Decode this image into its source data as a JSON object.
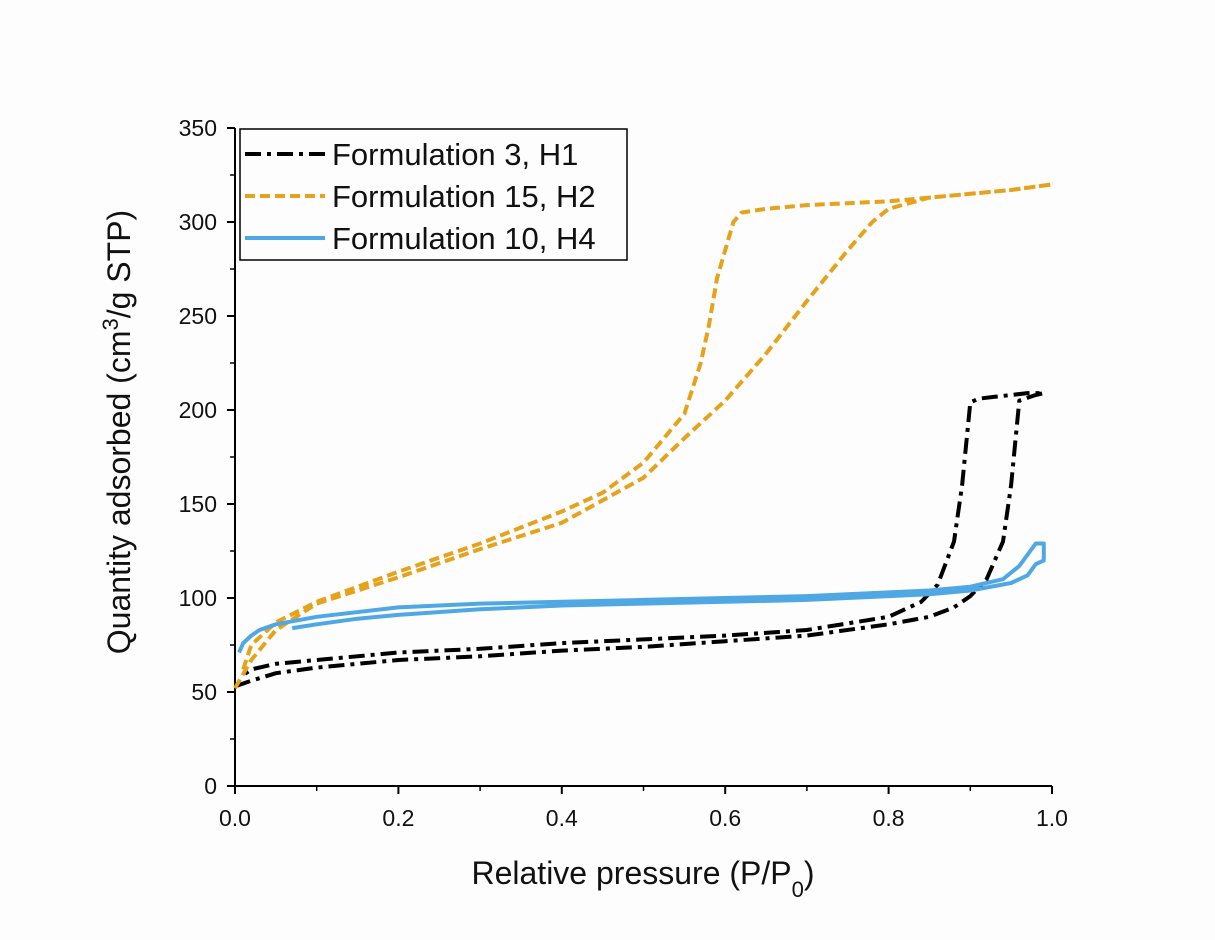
{
  "chart_data": {
    "type": "line",
    "title": "",
    "xlabel": "Relative pressure (P/P0)",
    "xlabel_parts": {
      "main": "Relative pressure (P/P",
      "sub": "0",
      "end": ")"
    },
    "ylabel": "Quantity adsorbed (cm3/g STP)",
    "ylabel_parts": {
      "main": "Quantity adsorbed (cm",
      "sup": "3",
      "end": "/g STP)"
    },
    "xlim": [
      0.0,
      1.0
    ],
    "ylim": [
      0,
      350
    ],
    "xticks": [
      "0.0",
      "0.2",
      "0.4",
      "0.6",
      "0.8",
      "1.0"
    ],
    "yticks": [
      "0",
      "50",
      "100",
      "150",
      "200",
      "250",
      "300",
      "350"
    ],
    "grid": false,
    "legend_position": "top-left",
    "series": [
      {
        "name": "Formulation 3, H1",
        "color": "#000000",
        "style": "dashdot",
        "x": [
          0.0,
          0.02,
          0.05,
          0.1,
          0.2,
          0.3,
          0.4,
          0.5,
          0.6,
          0.7,
          0.8,
          0.85,
          0.88,
          0.9,
          0.92,
          0.94,
          0.95,
          0.96,
          0.98,
          0.99,
          0.97,
          0.95,
          0.93,
          0.91,
          0.9,
          0.89,
          0.88,
          0.86,
          0.84,
          0.8,
          0.7,
          0.6,
          0.5,
          0.4,
          0.3,
          0.2,
          0.1,
          0.05,
          0.02,
          0.01
        ],
        "y": [
          53,
          56,
          60,
          63,
          67,
          69,
          72,
          74,
          77,
          80,
          86,
          90,
          95,
          101,
          110,
          130,
          160,
          205,
          208,
          209,
          209,
          208,
          207,
          206,
          204,
          160,
          130,
          107,
          98,
          90,
          83,
          80,
          78,
          76,
          73,
          71,
          67,
          65,
          62,
          59
        ]
      },
      {
        "name": "Formulation 15, H2",
        "color": "#e5a21b",
        "style": "dashed",
        "x": [
          0.0,
          0.02,
          0.05,
          0.1,
          0.2,
          0.3,
          0.4,
          0.5,
          0.55,
          0.6,
          0.65,
          0.7,
          0.75,
          0.78,
          0.8,
          0.85,
          0.9,
          0.95,
          1.0,
          0.95,
          0.9,
          0.85,
          0.8,
          0.75,
          0.7,
          0.65,
          0.62,
          0.61,
          0.6,
          0.59,
          0.58,
          0.57,
          0.55,
          0.5,
          0.45,
          0.4,
          0.3,
          0.2,
          0.1,
          0.05,
          0.02,
          0.01
        ],
        "y": [
          52,
          67,
          83,
          97,
          111,
          126,
          140,
          164,
          185,
          205,
          230,
          258,
          285,
          300,
          307,
          313,
          315,
          317,
          320,
          317,
          315,
          313,
          311,
          310,
          309,
          307,
          305,
          300,
          285,
          270,
          245,
          225,
          198,
          172,
          156,
          146,
          129,
          114,
          98,
          87,
          75,
          62
        ]
      },
      {
        "name": "Formulation 10, H4",
        "color": "#4fa8e3",
        "style": "solid",
        "x": [
          0.07,
          0.1,
          0.15,
          0.2,
          0.3,
          0.4,
          0.5,
          0.6,
          0.7,
          0.8,
          0.85,
          0.9,
          0.95,
          0.97,
          0.98,
          0.99,
          0.99,
          0.98,
          0.96,
          0.94,
          0.9,
          0.85,
          0.8,
          0.7,
          0.6,
          0.5,
          0.4,
          0.3,
          0.2,
          0.1,
          0.05,
          0.03,
          0.02,
          0.01,
          0.005
        ],
        "y": [
          84,
          86,
          89,
          91,
          94,
          96,
          97,
          98,
          99,
          101,
          102,
          104,
          108,
          112,
          118,
          120,
          129,
          129,
          117,
          110,
          106,
          104,
          103,
          101,
          100,
          99,
          98,
          97,
          95,
          90,
          86,
          83,
          80,
          76,
          71
        ]
      }
    ]
  }
}
